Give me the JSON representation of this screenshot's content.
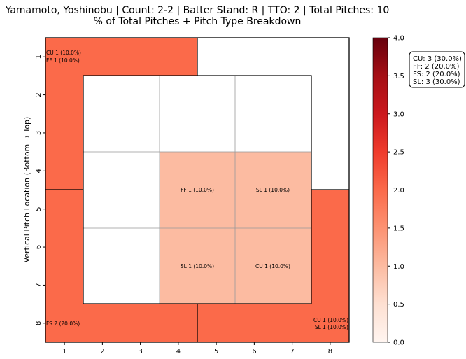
{
  "chart_data": {
    "type": "heatmap",
    "title": "Yamamoto, Yoshinobu | Count: 2-2 | Batter Stand: R | TTO: 2 | Total Pitches: 10",
    "subtitle": "% of Total Pitches + Pitch Type Breakdown",
    "ylabel": "Vertical Pitch Location (Bottom → Top)",
    "xlabel": "",
    "x_ticks": [
      "1",
      "2",
      "3",
      "4",
      "5",
      "6",
      "7",
      "8"
    ],
    "y_ticks": [
      "1",
      "2",
      "3",
      "4",
      "5",
      "6",
      "7",
      "8"
    ],
    "colorbar": {
      "min": 0,
      "max": 4,
      "ticks": [
        "0.0",
        "0.5",
        "1.0",
        "1.5",
        "2.0",
        "2.5",
        "3.0",
        "3.5",
        "4.0"
      ],
      "colormap": "Reds"
    },
    "zones": [
      {
        "name": "outer-top-left",
        "value": 2,
        "labels": [
          "CU 1 (10.0%)",
          "FF 1 (10.0%)"
        ]
      },
      {
        "name": "outer-top-right",
        "value": 0,
        "labels": []
      },
      {
        "name": "outer-bottom-left",
        "value": 2,
        "labels": [
          "FS 2 (20.0%)"
        ]
      },
      {
        "name": "outer-bottom-right",
        "value": 2,
        "labels": [
          "CU 1 (10.0%)",
          "SL 1 (10.0%)"
        ]
      },
      {
        "name": "inner-1-1",
        "value": 0,
        "labels": []
      },
      {
        "name": "inner-1-2",
        "value": 0,
        "labels": []
      },
      {
        "name": "inner-1-3",
        "value": 0,
        "labels": []
      },
      {
        "name": "inner-2-1",
        "value": 0,
        "labels": []
      },
      {
        "name": "inner-2-2",
        "value": 1,
        "labels": [
          "FF 1 (10.0%)"
        ]
      },
      {
        "name": "inner-2-3",
        "value": 1,
        "labels": [
          "SL 1 (10.0%)"
        ]
      },
      {
        "name": "inner-3-1",
        "value": 0,
        "labels": []
      },
      {
        "name": "inner-3-2",
        "value": 1,
        "labels": [
          "SL 1 (10.0%)"
        ]
      },
      {
        "name": "inner-3-3",
        "value": 1,
        "labels": [
          "CU 1 (10.0%)"
        ]
      }
    ],
    "legend": [
      "CU: 3 (30.0%)",
      "FF: 2 (20.0%)",
      "FS: 2 (20.0%)",
      "SL: 3 (30.0%)"
    ]
  }
}
